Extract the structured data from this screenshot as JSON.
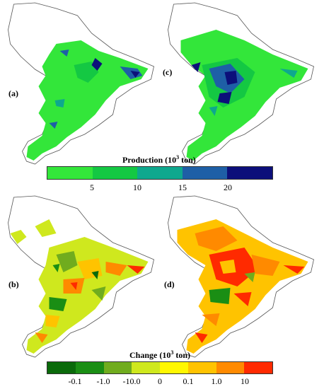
{
  "panels": {
    "a": {
      "label": "(a)"
    },
    "b": {
      "label": "(b)"
    },
    "c": {
      "label": "(c)"
    },
    "d": {
      "label": "(d)"
    }
  },
  "production_legend": {
    "title_main": "Production (10",
    "title_sup": "3",
    "title_end": " ton)",
    "colors": [
      "#33e63a",
      "#14c843",
      "#0ea88e",
      "#1e5fa6",
      "#0c0f7a"
    ],
    "ticks": [
      "5",
      "10",
      "15",
      "20"
    ]
  },
  "change_legend": {
    "title_main": "Change (10",
    "title_sup": "3",
    "title_end": " ton)",
    "colors": [
      "#0a6a0a",
      "#1a8e14",
      "#70ac1e",
      "#cfe81e",
      "#fff700",
      "#ffc300",
      "#ff8a00",
      "#ff2a00"
    ],
    "ticks": [
      "-0.1",
      "-1.0",
      "-10.0",
      "0",
      "0.1",
      "1.0",
      "10"
    ]
  },
  "map_colors": {
    "outline": "#555555",
    "boundary_fill": "#ffffff"
  }
}
